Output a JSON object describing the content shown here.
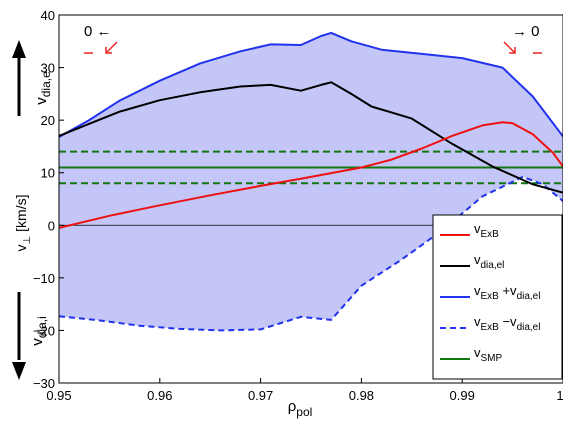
{
  "chart_data": {
    "type": "line",
    "xlabel": {
      "main": "ρ",
      "sub": "pol"
    },
    "ylabel": {
      "main": "v",
      "sub": "⊥",
      "unit": " [km/s]"
    },
    "xlim": [
      0.95,
      1.0
    ],
    "ylim": [
      -30,
      40
    ],
    "xticks": [
      {
        "v": 0.95,
        "t": "0.95"
      },
      {
        "v": 0.96,
        "t": "0.96"
      },
      {
        "v": 0.97,
        "t": "0.97"
      },
      {
        "v": 0.98,
        "t": "0.98"
      },
      {
        "v": 0.99,
        "t": "0.99"
      },
      {
        "v": 1.0,
        "t": "1"
      }
    ],
    "yticks": [
      {
        "v": 40,
        "t": "40"
      },
      {
        "v": 30,
        "t": "30"
      },
      {
        "v": 20,
        "t": "20"
      },
      {
        "v": 10,
        "t": "10"
      },
      {
        "v": 0,
        "t": "0"
      },
      {
        "v": -10,
        "t": "−10"
      },
      {
        "v": -20,
        "t": "−20"
      },
      {
        "v": -30,
        "t": "−30"
      }
    ],
    "grid": false,
    "legend_placement": "bottom-right",
    "direction_labels": {
      "up": {
        "main": "v",
        "sub": "dia,e"
      },
      "down": {
        "main": "v",
        "sub": "dia,i"
      }
    },
    "annotations": {
      "top_left_text": "0 ←",
      "top_right_text": "→ 0"
    },
    "colors": {
      "exb": "#ee1111",
      "dia": "#000000",
      "sum": "#2233ee",
      "fill": "#c4c6f7",
      "smp": "#117711",
      "annot_red": "#ee2222"
    },
    "series": [
      {
        "key": "exb",
        "legend": {
          "main": "v",
          "sub": "ExB",
          "tail": "",
          "sub2": ""
        },
        "style": "solid",
        "x": [
          0.95,
          0.955,
          0.96,
          0.965,
          0.97,
          0.975,
          0.98,
          0.983,
          0.986,
          0.989,
          0.992,
          0.994,
          0.995,
          0.997,
          0.999,
          1.0
        ],
        "y": [
          -0.5,
          1.8,
          3.8,
          5.7,
          7.5,
          9.2,
          11.0,
          12.5,
          14.6,
          17.0,
          19.0,
          19.6,
          19.4,
          17.3,
          13.8,
          11.2
        ]
      },
      {
        "key": "dia",
        "legend": {
          "main": "v",
          "sub": "dia,el",
          "tail": "",
          "sub2": ""
        },
        "style": "solid",
        "x": [
          0.95,
          0.953,
          0.956,
          0.96,
          0.964,
          0.968,
          0.971,
          0.974,
          0.976,
          0.977,
          0.979,
          0.981,
          0.985,
          0.989,
          0.993,
          0.997,
          1.0
        ],
        "y": [
          17.0,
          19.3,
          21.6,
          23.8,
          25.3,
          26.4,
          26.7,
          25.6,
          26.7,
          27.2,
          25.0,
          22.6,
          20.3,
          15.5,
          11.2,
          7.8,
          6.2
        ]
      },
      {
        "key": "sum",
        "legend": {
          "main": "v",
          "sub": "ExB",
          "tail": " +v",
          "sub2": "dia,el"
        },
        "style": "solid",
        "x": [
          0.95,
          0.953,
          0.956,
          0.96,
          0.964,
          0.968,
          0.971,
          0.974,
          0.976,
          0.977,
          0.979,
          0.982,
          0.986,
          0.99,
          0.994,
          0.997,
          1.0
        ],
        "y": [
          16.8,
          20.0,
          23.7,
          27.5,
          30.8,
          33.1,
          34.4,
          34.3,
          36.0,
          36.6,
          35.0,
          33.4,
          32.6,
          31.8,
          30.0,
          24.5,
          16.9
        ]
      },
      {
        "key": "diff",
        "legend": {
          "main": "v",
          "sub": "ExB",
          "tail": " −v",
          "sub2": "dia,el"
        },
        "style": "dashed",
        "x": [
          0.95,
          0.954,
          0.958,
          0.962,
          0.966,
          0.97,
          0.974,
          0.977,
          0.98,
          0.984,
          0.988,
          0.992,
          0.996,
          0.998,
          1.0
        ],
        "y": [
          -17.3,
          -18.1,
          -19.1,
          -19.7,
          -20.0,
          -19.8,
          -17.4,
          -18.0,
          -11.5,
          -6.5,
          -1.0,
          5.5,
          9.2,
          7.8,
          4.6
        ]
      },
      {
        "key": "smp",
        "legend": {
          "main": "v",
          "sub": "SMP",
          "tail": "",
          "sub2": ""
        },
        "style": "solid",
        "x": [
          0.95,
          1.0
        ],
        "y": [
          11.0,
          11.0
        ]
      }
    ],
    "smp_band": [
      8.0,
      14.0
    ],
    "zero_line": 0
  }
}
